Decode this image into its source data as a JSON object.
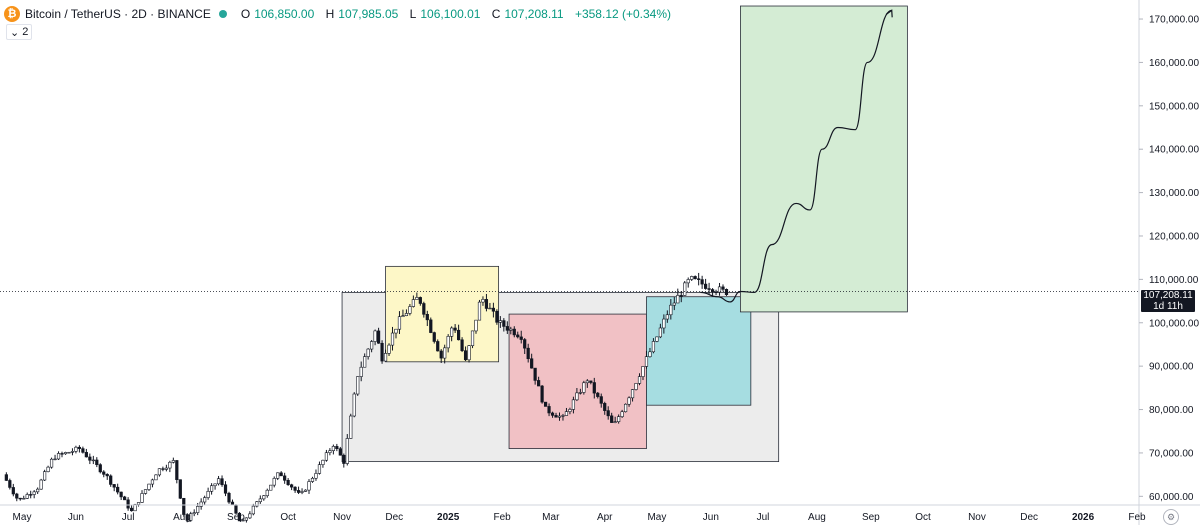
{
  "legend": {
    "logo_glyph": "₿",
    "title": "Bitcoin / TetherUS · 2D · BINANCE",
    "status_color": "#26a69a",
    "open_label": "O",
    "open": "106,850.00",
    "high_label": "H",
    "high": "107,985.05",
    "low_label": "L",
    "low": "106,100.01",
    "close_label": "C",
    "close": "107,208.11",
    "change": "+358.12 (+0.34%)",
    "indicator_count": "2",
    "collapse_icon": "chevron-down-icon"
  },
  "last_price": {
    "value": "107,208.11",
    "countdown": "1d 11h"
  },
  "settings_icon": "gear-icon",
  "colors": {
    "up": "#089981",
    "down": "#131722",
    "candle": "#131722"
  },
  "chart_data": {
    "type": "candlestick",
    "title": "",
    "xlabel": "",
    "ylabel": "",
    "grid": false,
    "ylim": [
      58000,
      176000
    ],
    "y_ticks": [
      60000,
      70000,
      80000,
      90000,
      100000,
      110000,
      120000,
      130000,
      140000,
      150000,
      160000,
      170000
    ],
    "y_tick_labels": [
      "60,000.00",
      "70,000.00",
      "80,000.00",
      "90,000.00",
      "100,000.00",
      "110,000.00",
      "120,000.00",
      "130,000.00",
      "140,000.00",
      "150,000.00",
      "160,000.00",
      "170,000.00"
    ],
    "x_ticks": [
      {
        "label": "May",
        "date": "2024-05-01"
      },
      {
        "label": "Jun",
        "date": "2024-06-01"
      },
      {
        "label": "Jul",
        "date": "2024-07-01"
      },
      {
        "label": "Aug",
        "date": "2024-08-01"
      },
      {
        "label": "Sep",
        "date": "2024-09-01"
      },
      {
        "label": "Oct",
        "date": "2024-10-01"
      },
      {
        "label": "Nov",
        "date": "2024-11-01"
      },
      {
        "label": "Dec",
        "date": "2024-12-01"
      },
      {
        "label": "2025",
        "date": "2025-01-01",
        "bold": true
      },
      {
        "label": "Feb",
        "date": "2025-02-01"
      },
      {
        "label": "Mar",
        "date": "2025-03-01"
      },
      {
        "label": "Apr",
        "date": "2025-04-01"
      },
      {
        "label": "May",
        "date": "2025-05-01"
      },
      {
        "label": "Jun",
        "date": "2025-06-01"
      },
      {
        "label": "Jul",
        "date": "2025-07-01"
      },
      {
        "label": "Aug",
        "date": "2025-08-01"
      },
      {
        "label": "Sep",
        "date": "2025-09-01"
      },
      {
        "label": "Oct",
        "date": "2025-10-01"
      },
      {
        "label": "Nov",
        "date": "2025-11-01"
      },
      {
        "label": "Dec",
        "date": "2025-12-01"
      },
      {
        "label": "2026",
        "date": "2026-01-01",
        "bold": true
      },
      {
        "label": "Feb",
        "date": "2026-02-01"
      }
    ],
    "price_path": [
      [
        "2024-04-22",
        65000
      ],
      [
        "2024-05-01",
        59000
      ],
      [
        "2024-05-12",
        62000
      ],
      [
        "2024-05-21",
        69000
      ],
      [
        "2024-06-05",
        71000
      ],
      [
        "2024-06-20",
        65000
      ],
      [
        "2024-07-05",
        56500
      ],
      [
        "2024-07-20",
        66000
      ],
      [
        "2024-07-29",
        68000
      ],
      [
        "2024-08-05",
        54000
      ],
      [
        "2024-08-24",
        64000
      ],
      [
        "2024-09-06",
        53500
      ],
      [
        "2024-09-28",
        65500
      ],
      [
        "2024-10-10",
        60000
      ],
      [
        "2024-10-29",
        72000
      ],
      [
        "2024-11-04",
        68000
      ],
      [
        "2024-11-12",
        88000
      ],
      [
        "2024-11-22",
        98000
      ],
      [
        "2024-11-26",
        92000
      ],
      [
        "2024-12-05",
        100000
      ],
      [
        "2024-12-17",
        106000
      ],
      [
        "2024-12-30",
        92000
      ],
      [
        "2025-01-06",
        100000
      ],
      [
        "2025-01-13",
        91000
      ],
      [
        "2025-01-22",
        106000
      ],
      [
        "2025-02-01",
        100000
      ],
      [
        "2025-02-14",
        97000
      ],
      [
        "2025-02-28",
        80000
      ],
      [
        "2025-03-10",
        78000
      ],
      [
        "2025-03-24",
        87000
      ],
      [
        "2025-04-08",
        76000
      ],
      [
        "2025-04-18",
        84000
      ],
      [
        "2025-05-01",
        95000
      ],
      [
        "2025-05-10",
        103000
      ],
      [
        "2025-05-22",
        110000
      ],
      [
        "2025-06-10",
        107200
      ]
    ],
    "candle_style": "OHLC with wicks; visible candles from 2024-04-22 to 2025-06-10",
    "zones": [
      {
        "color": "#ececec",
        "x": [
          "2024-11-01",
          "2025-07-10"
        ],
        "y": [
          68000,
          107000
        ]
      },
      {
        "color": "#fdf7c7",
        "x": [
          "2024-11-26",
          "2025-01-30"
        ],
        "y": [
          91000,
          113000
        ]
      },
      {
        "color": "#f1c1c5",
        "x": [
          "2025-02-05",
          "2025-04-25"
        ],
        "y": [
          71000,
          102000
        ]
      },
      {
        "color": "#a6dde1",
        "x": [
          "2025-04-25",
          "2025-06-24"
        ],
        "y": [
          81000,
          106000
        ]
      },
      {
        "color": "#d4ecd4",
        "x": [
          "2025-06-18",
          "2025-09-22"
        ],
        "y": [
          102500,
          173000
        ]
      }
    ],
    "projection_path": [
      [
        "2025-05-26",
        107000
      ],
      [
        "2025-06-05",
        106000
      ],
      [
        "2025-06-12",
        104800
      ],
      [
        "2025-06-18",
        107200
      ],
      [
        "2025-06-26",
        107000
      ],
      [
        "2025-07-06",
        118000
      ],
      [
        "2025-07-20",
        127500
      ],
      [
        "2025-07-28",
        126000
      ],
      [
        "2025-08-04",
        140000
      ],
      [
        "2025-08-13",
        145000
      ],
      [
        "2025-08-23",
        144500
      ],
      [
        "2025-08-30",
        160000
      ],
      [
        "2025-09-13",
        172000
      ]
    ],
    "last_price_value": 107208.11
  }
}
